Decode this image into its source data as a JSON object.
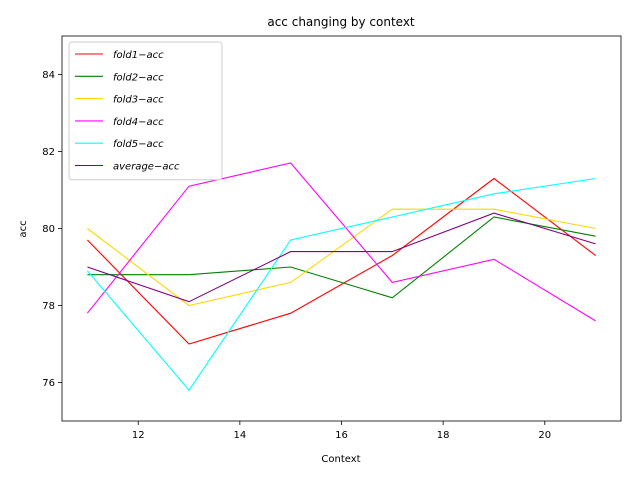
{
  "chart_data": {
    "type": "line",
    "title": "acc changing by context",
    "xlabel": "Context",
    "ylabel": "acc",
    "x": [
      11,
      13,
      15,
      17,
      19,
      21
    ],
    "xlim": [
      10.5,
      21.5
    ],
    "ylim": [
      75.0,
      85.0
    ],
    "xticks": [
      12,
      14,
      16,
      18,
      20
    ],
    "yticks": [
      76,
      78,
      80,
      82,
      84
    ],
    "grid": false,
    "legend_position": "upper-left",
    "series": [
      {
        "name": "fold1−acc",
        "color": "#ff0000",
        "values": [
          79.7,
          77.0,
          77.8,
          79.3,
          81.3,
          79.3
        ]
      },
      {
        "name": "fold2−acc",
        "color": "#008000",
        "values": [
          78.8,
          78.8,
          79.0,
          78.2,
          80.3,
          79.8
        ]
      },
      {
        "name": "fold3−acc",
        "color": "#ffd700",
        "values": [
          80.0,
          78.0,
          78.6,
          80.5,
          80.5,
          80.0
        ]
      },
      {
        "name": "fold4−acc",
        "color": "#ff00ff",
        "values": [
          77.8,
          81.1,
          81.7,
          78.6,
          79.2,
          77.6
        ]
      },
      {
        "name": "fold5−acc",
        "color": "#00ffff",
        "values": [
          78.9,
          75.8,
          79.7,
          80.3,
          80.9,
          81.3
        ]
      },
      {
        "name": "average−acc",
        "color": "#800080",
        "values": [
          79.0,
          78.1,
          79.4,
          79.4,
          80.4,
          79.6
        ]
      }
    ]
  }
}
